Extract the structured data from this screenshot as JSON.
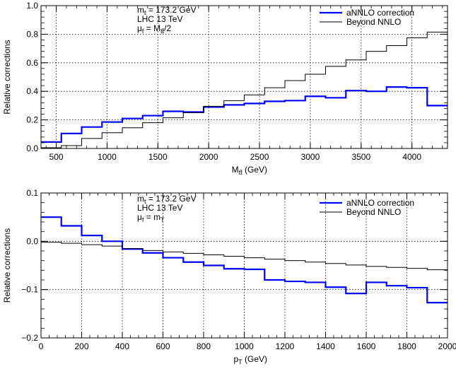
{
  "chart_data": [
    {
      "type": "line",
      "step": true,
      "xlabel": {
        "main": "M",
        "sub": "tt̄",
        "unit": " (GeV)"
      },
      "ylabel": "Relative corrections",
      "xlim": [
        350,
        4350
      ],
      "ylim": [
        0,
        1.0
      ],
      "xticks": [
        500,
        1000,
        1500,
        2000,
        2500,
        3000,
        3500,
        4000
      ],
      "yticks": [
        0,
        0.2,
        0.4,
        0.6,
        0.8,
        1.0
      ],
      "ytick_labels": [
        "0.0",
        "0.2",
        "0.4",
        "0.6",
        "0.8",
        "1.0"
      ],
      "grid": true,
      "legend_position": "top-right",
      "annotation": [
        {
          "main": "m",
          "sub": "t",
          "rest": " = 173.2 GeV"
        },
        {
          "main": "LHC 13 TeV",
          "sub": "",
          "rest": ""
        },
        {
          "main": "μ",
          "sub": "f",
          "rest": " = M",
          "sub2": "tt̄",
          "rest2": "/2"
        }
      ],
      "bin_edges": [
        350,
        550,
        750,
        950,
        1150,
        1350,
        1550,
        1750,
        1950,
        2150,
        2350,
        2550,
        2750,
        2950,
        3150,
        3350,
        3550,
        3750,
        3950,
        4150,
        4350
      ],
      "series": [
        {
          "name": "aNNLO correction",
          "color": "#0000ff",
          "width": 2.2,
          "values": [
            0.045,
            0.105,
            0.15,
            0.185,
            0.21,
            0.23,
            0.26,
            0.255,
            0.29,
            0.305,
            0.315,
            0.33,
            0.335,
            0.365,
            0.355,
            0.405,
            0.4,
            0.43,
            0.425,
            0.3
          ]
        },
        {
          "name": "Beyond NNLO",
          "color": "#000000",
          "width": 1.0,
          "values": [
            0.005,
            0.02,
            0.07,
            0.11,
            0.145,
            0.18,
            0.215,
            0.25,
            0.295,
            0.335,
            0.375,
            0.425,
            0.475,
            0.52,
            0.575,
            0.62,
            0.68,
            0.72,
            0.775,
            0.815
          ]
        }
      ]
    },
    {
      "type": "line",
      "step": true,
      "xlabel": {
        "main": "p",
        "sub": "T",
        "unit": " (GeV)"
      },
      "ylabel": "Relative corrections",
      "xlim": [
        0,
        2000
      ],
      "ylim": [
        -0.2,
        0.1
      ],
      "xticks": [
        0,
        200,
        400,
        600,
        800,
        1000,
        1200,
        1400,
        1600,
        1800,
        2000
      ],
      "yticks": [
        -0.2,
        -0.1,
        0,
        0.1
      ],
      "ytick_labels": [
        "−0.2",
        "−0.1",
        "0.0",
        "0.1"
      ],
      "grid": true,
      "legend_position": "top-right",
      "annotation": [
        {
          "main": "m",
          "sub": "t",
          "rest": " = 173.2 GeV"
        },
        {
          "main": "LHC 13 TeV",
          "sub": "",
          "rest": ""
        },
        {
          "main": "μ",
          "sub": "f",
          "rest": " = m",
          "sub2": "T",
          "rest2": ""
        }
      ],
      "bin_edges": [
        0,
        100,
        200,
        300,
        400,
        500,
        600,
        700,
        800,
        900,
        1000,
        1100,
        1200,
        1300,
        1400,
        1500,
        1600,
        1700,
        1800,
        1900,
        2000
      ],
      "series": [
        {
          "name": "aNNLO correction",
          "color": "#0000ff",
          "width": 2.2,
          "values": [
            0.05,
            0.032,
            0.012,
            0.0,
            -0.016,
            -0.024,
            -0.034,
            -0.043,
            -0.05,
            -0.057,
            -0.058,
            -0.08,
            -0.083,
            -0.085,
            -0.095,
            -0.108,
            -0.085,
            -0.092,
            -0.096,
            -0.127
          ]
        },
        {
          "name": "Beyond NNLO",
          "color": "#000000",
          "width": 1.0,
          "values": [
            -0.002,
            -0.004,
            -0.007,
            -0.01,
            -0.015,
            -0.019,
            -0.022,
            -0.025,
            -0.028,
            -0.031,
            -0.034,
            -0.037,
            -0.04,
            -0.043,
            -0.046,
            -0.049,
            -0.052,
            -0.054,
            -0.056,
            -0.059
          ]
        }
      ]
    }
  ]
}
